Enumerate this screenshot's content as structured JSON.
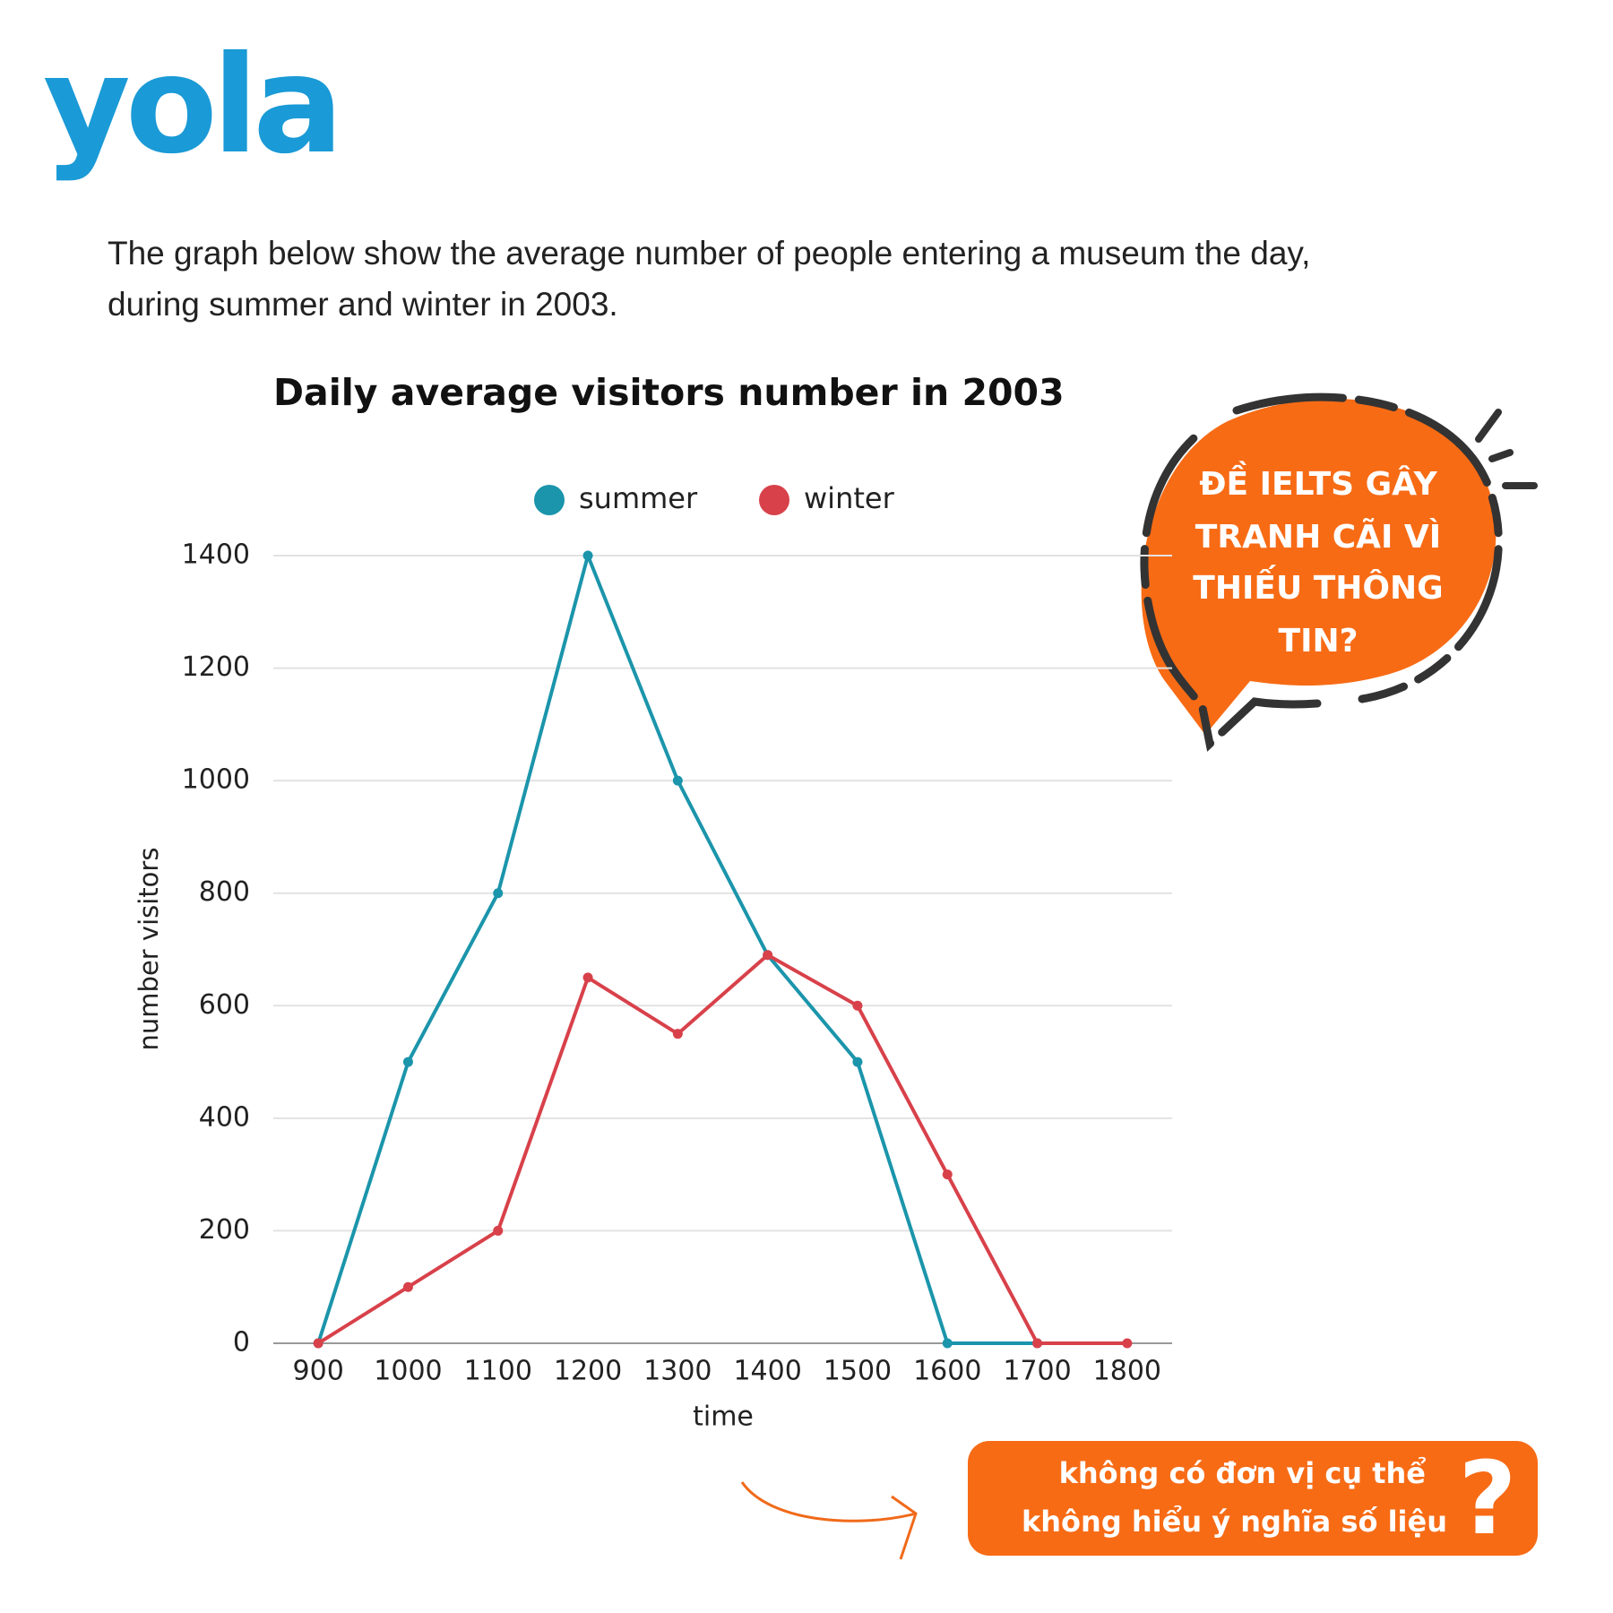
{
  "logo": "yola",
  "intro": [
    "The graph below show the average number of people entering a museum the day,",
    "during summer and winter in 2003."
  ],
  "bubble": [
    "ĐỀ IELTS GÂY",
    "TRANH CÃI VÌ",
    "THIẾU THÔNG",
    "TIN?"
  ],
  "callout": {
    "lines": [
      "không có đơn vị cụ thể",
      "không hiểu ý nghĩa số liệu"
    ],
    "mark": "?"
  },
  "chart_data": {
    "type": "line",
    "title": "Daily average visitors number in 2003",
    "x_label": "time",
    "y_label": "number visitors",
    "categories": [
      "900",
      "1000",
      "1100",
      "1200",
      "1300",
      "1400",
      "1500",
      "1600",
      "1700",
      "1800"
    ],
    "series": [
      {
        "name": "summer",
        "color": "#1b95ab",
        "values": [
          0,
          500,
          800,
          1400,
          1000,
          690,
          500,
          0,
          0,
          null
        ]
      },
      {
        "name": "winter",
        "color": "#d8414a",
        "values": [
          0,
          100,
          200,
          650,
          550,
          690,
          600,
          300,
          0,
          0
        ]
      }
    ],
    "ylim": [
      0,
      1400
    ],
    "yticks": [
      0,
      200,
      400,
      600,
      800,
      1000,
      1200,
      1400
    ],
    "grid": true
  }
}
